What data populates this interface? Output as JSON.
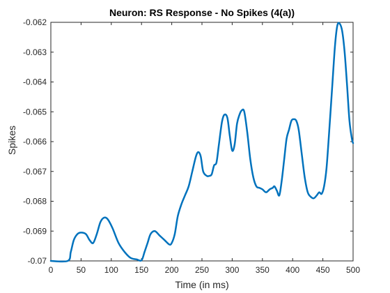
{
  "chart_data": {
    "type": "line",
    "title": "Neuron: RS Response - No Spikes (4(a))",
    "xlabel": "Time (in ms)",
    "ylabel": "Spikes",
    "xlim": [
      0,
      500
    ],
    "ylim": [
      -0.07,
      -0.062
    ],
    "x_ticks": [
      0,
      50,
      100,
      150,
      200,
      250,
      300,
      350,
      400,
      450,
      500
    ],
    "y_ticks": [
      -0.07,
      -0.069,
      -0.068,
      -0.067,
      -0.066,
      -0.065,
      -0.064,
      -0.063,
      -0.062
    ],
    "x_tick_labels": [
      "0",
      "50",
      "100",
      "150",
      "200",
      "250",
      "300",
      "350",
      "400",
      "450",
      "500"
    ],
    "y_tick_labels": [
      "-0.07",
      "-0.069",
      "-0.068",
      "-0.067",
      "-0.066",
      "-0.065",
      "-0.064",
      "-0.063",
      "-0.062"
    ],
    "grid": false,
    "line_color": "#0072BD",
    "series": [
      {
        "x": [
          0,
          28,
          33,
          38,
          44,
          50,
          58,
          64,
          70,
          76,
          82,
          88,
          94,
          102,
          112,
          122,
          132,
          142,
          150,
          155,
          160,
          165,
          172,
          180,
          188,
          196,
          200,
          205,
          210,
          216,
          222,
          228,
          234,
          240,
          244,
          248,
          252,
          258,
          262,
          266,
          270,
          274,
          278,
          283,
          287,
          292,
          296,
          300,
          304,
          308,
          312,
          316,
          320,
          325,
          330,
          335,
          340,
          345,
          350,
          356,
          362,
          367,
          370,
          374,
          378,
          382,
          386,
          390,
          394,
          398,
          402,
          406,
          410,
          415,
          420,
          425,
          430,
          435,
          440,
          444,
          448,
          452,
          456,
          460,
          465,
          470,
          474,
          478,
          482,
          486,
          490,
          494,
          498,
          500
        ],
        "y": [
          -0.07,
          -0.07,
          -0.0697,
          -0.0693,
          -0.0691,
          -0.06905,
          -0.0691,
          -0.0693,
          -0.0694,
          -0.0691,
          -0.0687,
          -0.06855,
          -0.0686,
          -0.0689,
          -0.0694,
          -0.0697,
          -0.0699,
          -0.06995,
          -0.06998,
          -0.0697,
          -0.0694,
          -0.0691,
          -0.069,
          -0.06915,
          -0.0693,
          -0.06945,
          -0.0694,
          -0.0691,
          -0.0685,
          -0.0681,
          -0.0678,
          -0.0675,
          -0.067,
          -0.0665,
          -0.06635,
          -0.0665,
          -0.067,
          -0.06715,
          -0.06715,
          -0.0671,
          -0.0668,
          -0.0667,
          -0.0661,
          -0.06535,
          -0.0651,
          -0.0652,
          -0.0658,
          -0.0663,
          -0.0661,
          -0.0654,
          -0.0651,
          -0.06495,
          -0.065,
          -0.0657,
          -0.0666,
          -0.0672,
          -0.0675,
          -0.06755,
          -0.0676,
          -0.0677,
          -0.0676,
          -0.06755,
          -0.0675,
          -0.06765,
          -0.0678,
          -0.0673,
          -0.0666,
          -0.0659,
          -0.0656,
          -0.0653,
          -0.06525,
          -0.0653,
          -0.0656,
          -0.0664,
          -0.0672,
          -0.0677,
          -0.06785,
          -0.0679,
          -0.0678,
          -0.0677,
          -0.06775,
          -0.0675,
          -0.0669,
          -0.0658,
          -0.0643,
          -0.0628,
          -0.0621,
          -0.06205,
          -0.0623,
          -0.063,
          -0.0641,
          -0.0653,
          -0.0659,
          -0.06605
        ]
      }
    ]
  }
}
